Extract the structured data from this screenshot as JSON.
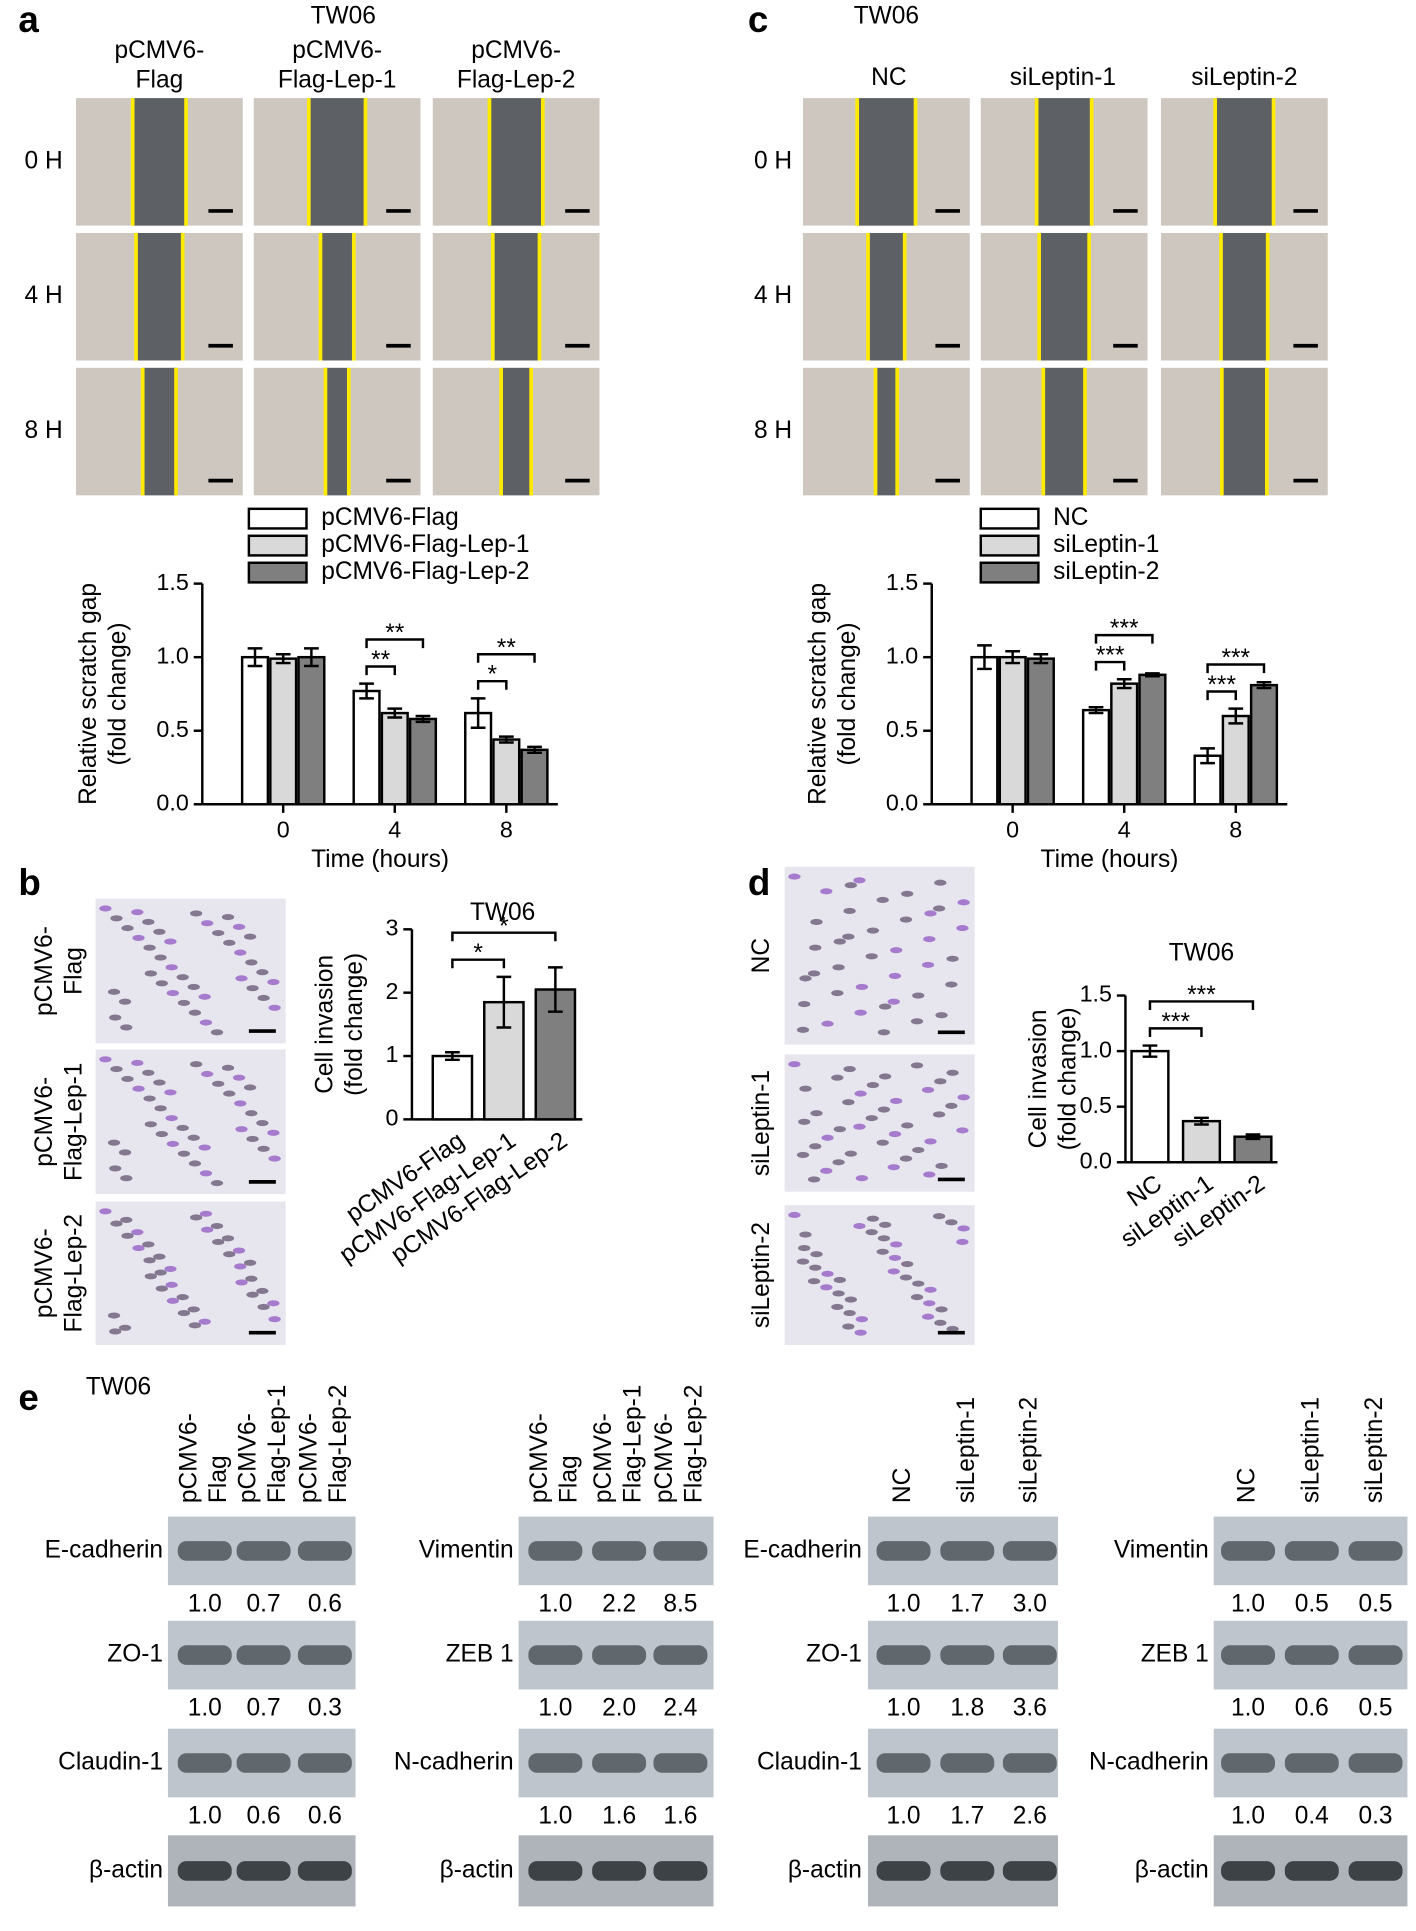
{
  "figure": {
    "panel_labels": [
      "a",
      "b",
      "c",
      "d",
      "e"
    ],
    "a": {
      "cell_line": "TW06",
      "columns": [
        [
          "pCMV6-",
          "Flag"
        ],
        [
          "pCMV6-",
          "Flag-Lep-1"
        ],
        [
          "pCMV6-",
          "Flag-Lep-2"
        ]
      ],
      "rows": [
        "0 H",
        "4 H",
        "8 H"
      ]
    },
    "b": {
      "rows": [
        [
          "pCMV6-",
          "Flag"
        ],
        [
          "pCMV6-",
          "Flag-Lep-1"
        ],
        [
          "pCMV6-",
          "Flag-Lep-2"
        ]
      ]
    },
    "c": {
      "cell_line": "TW06",
      "columns": [
        "NC",
        "siLeptin-1",
        "siLeptin-2"
      ],
      "rows": [
        "0 H",
        "4 H",
        "8 H"
      ]
    },
    "d": {
      "rows": [
        "NC",
        "siLeptin-1",
        "siLeptin-2"
      ]
    },
    "e": {
      "cell_line": "TW06",
      "blots": [
        {
          "lanes": [
            [
              "pCMV6-",
              "Flag"
            ],
            [
              "pCMV6-",
              "Flag-Lep-1"
            ],
            [
              "pCMV6-",
              "Flag-Lep-2"
            ]
          ],
          "proteins": [
            {
              "name": "E-cadherin",
              "ratios": [
                "1.0",
                "0.7",
                "0.6"
              ]
            },
            {
              "name": "ZO-1",
              "ratios": [
                "1.0",
                "0.7",
                "0.3"
              ]
            },
            {
              "name": "Claudin-1",
              "ratios": [
                "1.0",
                "0.6",
                "0.6"
              ]
            }
          ],
          "loading": "β-actin"
        },
        {
          "lanes": [
            [
              "pCMV6-",
              "Flag"
            ],
            [
              "pCMV6-",
              "Flag-Lep-1"
            ],
            [
              "pCMV6-",
              "Flag-Lep-2"
            ]
          ],
          "proteins": [
            {
              "name": "Vimentin",
              "ratios": [
                "1.0",
                "2.2",
                "8.5"
              ]
            },
            {
              "name": "ZEB 1",
              "ratios": [
                "1.0",
                "2.0",
                "2.4"
              ]
            },
            {
              "name": "N-cadherin",
              "ratios": [
                "1.0",
                "1.6",
                "1.6"
              ]
            }
          ],
          "loading": "β-actin"
        },
        {
          "lanes": [
            [
              "NC"
            ],
            [
              "siLeptin-1"
            ],
            [
              "siLeptin-2"
            ]
          ],
          "proteins": [
            {
              "name": "E-cadherin",
              "ratios": [
                "1.0",
                "1.7",
                "3.0"
              ]
            },
            {
              "name": "ZO-1",
              "ratios": [
                "1.0",
                "1.8",
                "3.6"
              ]
            },
            {
              "name": "Claudin-1",
              "ratios": [
                "1.0",
                "1.7",
                "2.6"
              ]
            }
          ],
          "loading": "β-actin"
        },
        {
          "lanes": [
            [
              "NC"
            ],
            [
              "siLeptin-1"
            ],
            [
              "siLeptin-2"
            ]
          ],
          "proteins": [
            {
              "name": "Vimentin",
              "ratios": [
                "1.0",
                "0.5",
                "0.5"
              ]
            },
            {
              "name": "ZEB 1",
              "ratios": [
                "1.0",
                "0.6",
                "0.5"
              ]
            },
            {
              "name": "N-cadherin",
              "ratios": [
                "1.0",
                "0.4",
                "0.3"
              ]
            }
          ],
          "loading": "β-actin"
        }
      ]
    }
  },
  "chart_data": [
    {
      "type": "bar",
      "ylabel": [
        "Relative scratch gap",
        "(fold change)"
      ],
      "xlabel": "Time (hours)",
      "categories": [
        "0",
        "4",
        "8"
      ],
      "series": [
        {
          "name": "pCMV6-Flag",
          "color": "#ffffff",
          "values": [
            1.0,
            0.77,
            0.62
          ],
          "errors": [
            0.06,
            0.05,
            0.1
          ]
        },
        {
          "name": "pCMV6-Flag-Lep-1",
          "color": "#d9d9d9",
          "values": [
            0.99,
            0.62,
            0.44
          ],
          "errors": [
            0.03,
            0.03,
            0.02
          ]
        },
        {
          "name": "pCMV6-Flag-Lep-2",
          "color": "#7f7f7f",
          "values": [
            1.0,
            0.58,
            0.37
          ],
          "errors": [
            0.06,
            0.02,
            0.02
          ]
        }
      ],
      "ylim": [
        0,
        1.5
      ],
      "yticks": [
        {
          "value": 0,
          "label": "0.0"
        },
        0.5,
        {
          "value": 1,
          "label": "1.0"
        },
        1.5
      ],
      "annotations": [
        {
          "text": "**",
          "category": 1,
          "between": [
            0,
            1
          ]
        },
        {
          "text": "**",
          "category": 1,
          "between": [
            0,
            2
          ]
        },
        {
          "text": "*",
          "category": 2,
          "between": [
            0,
            1
          ]
        },
        {
          "text": "**",
          "category": 2,
          "between": [
            0,
            2
          ]
        }
      ]
    },
    {
      "type": "bar",
      "ylabel": [
        "Relative scratch gap",
        "(fold change)"
      ],
      "xlabel": "Time (hours)",
      "categories": [
        "0",
        "4",
        "8"
      ],
      "series": [
        {
          "name": "NC",
          "color": "#ffffff",
          "values": [
            1.0,
            0.64,
            0.33
          ],
          "errors": [
            0.08,
            0.02,
            0.05
          ]
        },
        {
          "name": "siLeptin-1",
          "color": "#d9d9d9",
          "values": [
            1.0,
            0.82,
            0.6
          ],
          "errors": [
            0.04,
            0.03,
            0.05
          ]
        },
        {
          "name": "siLeptin-2",
          "color": "#7f7f7f",
          "values": [
            0.99,
            0.88,
            0.81
          ],
          "errors": [
            0.03,
            0.01,
            0.02
          ]
        }
      ],
      "ylim": [
        0,
        1.5
      ],
      "yticks": [
        {
          "value": 0,
          "label": "0.0"
        },
        0.5,
        {
          "value": 1,
          "label": "1.0"
        },
        1.5
      ],
      "annotations": [
        {
          "text": "***",
          "category": 1,
          "between": [
            0,
            1
          ]
        },
        {
          "text": "***",
          "category": 1,
          "between": [
            0,
            2
          ]
        },
        {
          "text": "***",
          "category": 2,
          "between": [
            0,
            1
          ]
        },
        {
          "text": "***",
          "category": 2,
          "between": [
            0,
            2
          ]
        }
      ]
    },
    {
      "type": "bar",
      "title": "TW06",
      "ylabel": [
        "Cell invasion",
        "(fold change)"
      ],
      "categories": [
        "pCMV6-Flag",
        "pCMV6-Flag-Lep-1",
        "pCMV6-Flag-Lep-2"
      ],
      "colors": [
        "#ffffff",
        "#d9d9d9",
        "#7f7f7f"
      ],
      "values": [
        1.0,
        1.85,
        2.05
      ],
      "errors": [
        0.06,
        0.4,
        0.35
      ],
      "ylim": [
        0,
        3
      ],
      "yticks": [
        0,
        1,
        2,
        3
      ],
      "annotations": [
        {
          "text": "*",
          "between": [
            0,
            1
          ]
        },
        {
          "text": "*",
          "between": [
            0,
            2
          ]
        }
      ]
    },
    {
      "type": "bar",
      "title": "TW06",
      "ylabel": [
        "Cell invasion",
        "(fold change)"
      ],
      "categories": [
        "NC",
        "siLeptin-1",
        "siLeptin-2"
      ],
      "colors": [
        "#ffffff",
        "#d9d9d9",
        "#7f7f7f"
      ],
      "values": [
        1.0,
        0.37,
        0.23
      ],
      "errors": [
        0.05,
        0.03,
        0.02
      ],
      "ylim": [
        0,
        1.5
      ],
      "yticks": [
        {
          "value": 0,
          "label": "0.0"
        },
        0.5,
        {
          "value": 1,
          "label": "1.0"
        },
        1.5
      ],
      "annotations": [
        {
          "text": "***",
          "between": [
            0,
            1
          ]
        },
        {
          "text": "***",
          "between": [
            0,
            2
          ]
        }
      ]
    }
  ]
}
